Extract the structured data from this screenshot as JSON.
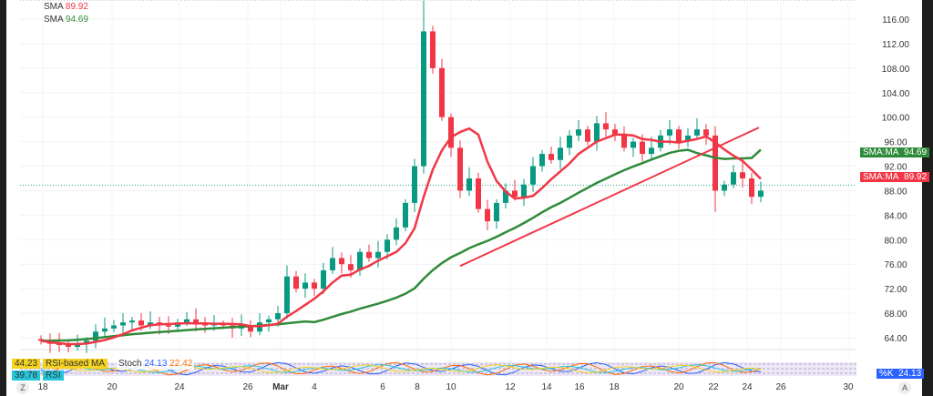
{
  "legend": {
    "sma_red": {
      "name": "SMA",
      "value": "89.92"
    },
    "sma_green": {
      "name": "SMA",
      "value": "94.69"
    }
  },
  "price_tags": [
    {
      "label": "SMA:MA",
      "value": "94.69",
      "color": "#2e8b3a"
    },
    {
      "label": "SMA:MA",
      "value": "89.92",
      "color": "#f23645"
    }
  ],
  "osc": {
    "rsi_ma_value": "44.23",
    "rsi_ma_label": "RSI-based MA",
    "rsi_value": "39.78",
    "rsi_label": "RSI",
    "stoch_label": "Stoch",
    "stoch_k": "24.13",
    "stoch_d": "22.42",
    "k_tag": "%K",
    "k_value": "24.13"
  },
  "buttons": {
    "z": "Z",
    "a": "A"
  },
  "chart_data": {
    "type": "candlestick",
    "ylim": [
      62,
      120
    ],
    "yticks": [
      "116.00",
      "112.00",
      "108.00",
      "104.00",
      "100.00",
      "96.00",
      "92.00",
      "88.00",
      "84.00",
      "80.00",
      "76.00",
      "72.00",
      "68.00",
      "64.00"
    ],
    "xticks": [
      "18",
      "20",
      "24",
      "26",
      "Mar",
      "4",
      "6",
      "8",
      "10",
      "12",
      "14",
      "16",
      "18",
      "20",
      "22",
      "24",
      "26",
      "30"
    ],
    "last_price": 88.9,
    "closes": [
      63.5,
      63,
      62.8,
      62.5,
      63,
      63.5,
      65,
      65.5,
      66,
      66.5,
      66.8,
      66,
      66.5,
      66,
      65.8,
      66.5,
      67,
      66.5,
      66,
      66.2,
      66,
      65.5,
      66,
      65,
      66.5,
      67,
      68,
      74,
      72,
      73,
      72,
      75,
      77,
      76,
      75,
      78,
      77,
      78,
      80,
      82,
      86,
      92,
      114,
      108,
      100,
      95,
      88,
      90,
      85,
      83,
      86,
      88,
      87,
      89,
      92,
      94,
      93,
      95,
      97,
      98,
      96,
      99,
      98,
      97,
      95,
      96,
      94,
      95,
      97,
      98,
      96,
      97,
      98,
      97,
      88,
      89,
      91,
      90,
      87,
      88
    ],
    "trendline": {
      "from": 75.7,
      "to": 98.3
    },
    "series": [
      {
        "name": "SMA",
        "color": "#f23645"
      },
      {
        "name": "SMA",
        "color": "#2e8b3a"
      }
    ]
  }
}
